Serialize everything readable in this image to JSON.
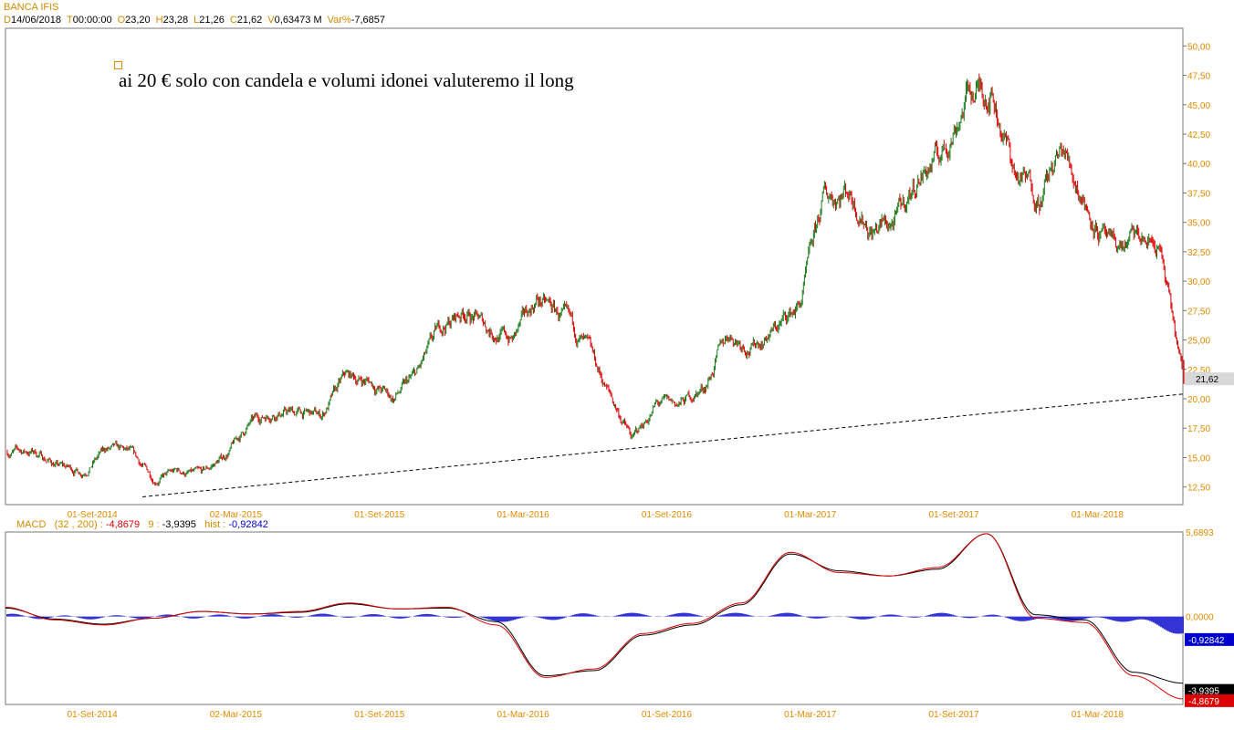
{
  "header": {
    "title": "BANCA IFIS",
    "ohlc": [
      {
        "label": "D",
        "value": "14/06/2018"
      },
      {
        "label": "T",
        "value": "00:00:00"
      },
      {
        "label": "O",
        "value": "23,20"
      },
      {
        "label": "H",
        "value": "23,28"
      },
      {
        "label": "L",
        "value": "21,26"
      },
      {
        "label": "C",
        "value": "21,62"
      },
      {
        "label": "V",
        "value": "0,63473 M"
      },
      {
        "label": "Var%",
        "value": "-7,6857"
      }
    ]
  },
  "annotation": "ai 20 € solo con candela e volumi idonei valuteremo il long",
  "macd_header": {
    "name": "MACD",
    "params": "(32 , 200) :",
    "macd_value": "-4,8679",
    "signal_label": "9 :",
    "signal_value": "-3,9395",
    "hist_label": "hist :",
    "hist_value": "-0,92842"
  },
  "colors": {
    "up": "#1a7a1a",
    "down": "#dd0000",
    "axis_text": "#e08a00",
    "macd": "#dd0000",
    "signal": "#000000",
    "hist": "#0000cc"
  },
  "chart_data": [
    {
      "type": "candlestick",
      "ylim": [
        11,
        51.5
      ],
      "yticks": [
        "12,50",
        "15,00",
        "17,50",
        "20,00",
        "22,50",
        "25,00",
        "27,50",
        "30,00",
        "32,50",
        "35,00",
        "37,50",
        "40,00",
        "42,50",
        "45,00",
        "47,50",
        "50,00"
      ],
      "x_tick_labels": [
        "01-Set-2014",
        "02-Mar-2015",
        "01-Set-2015",
        "01-Mar-2016",
        "01-Set-2016",
        "01-Mar-2017",
        "01-Set-2017",
        "01-Mar-2018"
      ],
      "last_price_label": "21,62",
      "close_path": [
        [
          "2014-06",
          15.5
        ],
        [
          "2014-07",
          14.3
        ],
        [
          "2014-08",
          13.8
        ],
        [
          "2014-09",
          15.7
        ],
        [
          "2014-10",
          15.3
        ],
        [
          "2014-11",
          13.2
        ],
        [
          "2014-12",
          13.8
        ],
        [
          "2015-01",
          13.5
        ],
        [
          "2015-02",
          15.2
        ],
        [
          "2015-03",
          17.8
        ],
        [
          "2015-04",
          19.0
        ],
        [
          "2015-05",
          18.8
        ],
        [
          "2015-06",
          18.5
        ],
        [
          "2015-07",
          21.8
        ],
        [
          "2015-08",
          21.5
        ],
        [
          "2015-09",
          20.0
        ],
        [
          "2015-10",
          22.0
        ],
        [
          "2015-11",
          26.0
        ],
        [
          "2015-12",
          27.5
        ],
        [
          "2016-01",
          26.0
        ],
        [
          "2016-02",
          25.0
        ],
        [
          "2016-03",
          28.5
        ],
        [
          "2016-04",
          27.0
        ],
        [
          "2016-05",
          24.5
        ],
        [
          "2016-06",
          20.5
        ],
        [
          "2016-07",
          16.5
        ],
        [
          "2016-08",
          19.5
        ],
        [
          "2016-09",
          19.5
        ],
        [
          "2016-10",
          21.0
        ],
        [
          "2016-11",
          25.5
        ],
        [
          "2016-12",
          24.5
        ],
        [
          "2017-01",
          26.0
        ],
        [
          "2017-02",
          28.0
        ],
        [
          "2017-03",
          37.0
        ],
        [
          "2017-04",
          38.0
        ],
        [
          "2017-05",
          34.5
        ],
        [
          "2017-06",
          35.0
        ],
        [
          "2017-07",
          39.0
        ],
        [
          "2017-08",
          41.0
        ],
        [
          "2017-09",
          46.0
        ],
        [
          "2017-10",
          46.5
        ],
        [
          "2017-11",
          39.0
        ],
        [
          "2017-12",
          37.5
        ],
        [
          "2018-01",
          41.0
        ],
        [
          "2018-02",
          36.5
        ],
        [
          "2018-03",
          32.5
        ],
        [
          "2018-04",
          33.5
        ],
        [
          "2018-05",
          33.0
        ],
        [
          "2018-06",
          21.62
        ]
      ],
      "trendline": [
        [
          "2014-09",
          11.2
        ],
        [
          "2018-06",
          20.4
        ]
      ]
    },
    {
      "type": "line",
      "title": "MACD",
      "series": [
        {
          "name": "MACD",
          "values": [
            0.55,
            -0.2,
            -0.5,
            -0.1,
            0.3,
            0.15,
            0.3,
            0.8,
            0.45,
            0.55,
            -0.5,
            -3.6,
            -3.1,
            -1.0,
            -0.4,
            0.8,
            3.8,
            2.6,
            2.4,
            2.9,
            4.9,
            -0.1,
            -0.35,
            -3.5,
            -4.87
          ]
        },
        {
          "name": "Signal",
          "values": [
            0.5,
            -0.15,
            -0.45,
            -0.1,
            0.3,
            0.15,
            0.25,
            0.75,
            0.45,
            0.5,
            -0.3,
            -3.5,
            -3.2,
            -1.1,
            -0.5,
            0.7,
            3.7,
            2.7,
            2.4,
            2.8,
            4.9,
            0.1,
            -0.2,
            -3.3,
            -3.94
          ]
        }
      ],
      "ylim": [
        -5.2,
        5.0
      ],
      "right_labels": {
        "top": "5,6893",
        "zero": "0,0000",
        "hist": "-0,92842",
        "signal": "-3,9395",
        "macd": "-4,8679"
      }
    }
  ]
}
